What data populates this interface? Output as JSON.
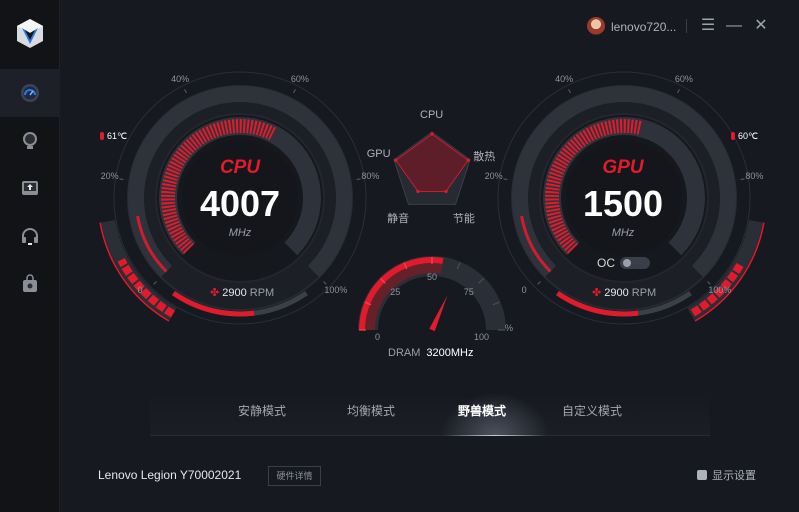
{
  "header": {
    "username": "lenovo720...",
    "menu_icon": "hamburger-icon",
    "minimize_icon": "minimize-icon",
    "close_icon": "close-icon"
  },
  "sidebar": {
    "items": [
      {
        "name": "dashboard",
        "icon": "speedometer-icon",
        "active": true
      },
      {
        "name": "lighting",
        "icon": "lightbulb-icon"
      },
      {
        "name": "upload",
        "icon": "upload-tray-icon"
      },
      {
        "name": "audio",
        "icon": "headset-icon"
      },
      {
        "name": "store",
        "icon": "shopping-bag-icon"
      }
    ]
  },
  "colors": {
    "accent": "#e11b2b",
    "background": "#16191f",
    "sidebar": "#111317"
  },
  "cpu": {
    "title": "CPU",
    "value": "4007",
    "unit": "MHz",
    "temp": "61℃",
    "fan_value": "2900",
    "fan_unit": "RPM",
    "load_percent": 60,
    "fan_percent": 60,
    "temp_percent": 65,
    "ticks": [
      "0",
      "20%",
      "40%",
      "60%",
      "80%",
      "100%"
    ]
  },
  "gpu": {
    "title": "GPU",
    "value": "1500",
    "unit": "MHz",
    "temp": "60℃",
    "fan_value": "2900",
    "fan_unit": "RPM",
    "load_percent": 55,
    "fan_percent": 60,
    "temp_percent": 60,
    "oc_label": "OC",
    "oc_enabled": false,
    "ticks": [
      "0",
      "20%",
      "40%",
      "60%",
      "80%",
      "100%"
    ]
  },
  "radar": {
    "axes": [
      {
        "label": "CPU",
        "value": 0.95
      },
      {
        "label": "散热",
        "value": 0.95
      },
      {
        "label": "节能",
        "value": 0.6
      },
      {
        "label": "静音",
        "value": 0.6
      },
      {
        "label": "GPU",
        "value": 0.95
      }
    ]
  },
  "dram": {
    "label": "DRAM",
    "value": "3200MHz",
    "ticks": [
      "0",
      "25",
      "50",
      "75",
      "100"
    ],
    "unit": "%",
    "load_percent": 55
  },
  "modes": {
    "items": [
      "安静模式",
      "均衡模式",
      "野兽模式",
      "自定义模式"
    ],
    "active": 2
  },
  "footer": {
    "model": "Lenovo Legion Y70002021",
    "hw_button": "硬件详情",
    "display_settings": "显示设置"
  }
}
